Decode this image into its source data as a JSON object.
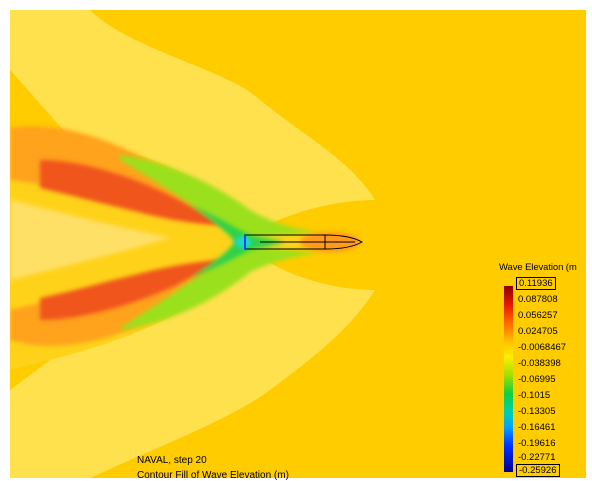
{
  "legend": {
    "title": "Wave Elevation (m",
    "max_label": "0.11936",
    "min_label": "-0.25926",
    "labels": [
      "0.087808",
      "0.056257",
      "0.024705",
      "-0.0068467",
      "-0.038398",
      "-0.06995",
      "-0.1015",
      "-0.13305",
      "-0.16461",
      "-0.19616",
      "-0.22771"
    ]
  },
  "caption": {
    "line1": "NAVAL, step 20",
    "line2": "Contour Fill of Wave Elevation (m)"
  },
  "colors": {
    "background_field": "#ffcc00",
    "max": "#8b0000",
    "min": "#00008b"
  }
}
